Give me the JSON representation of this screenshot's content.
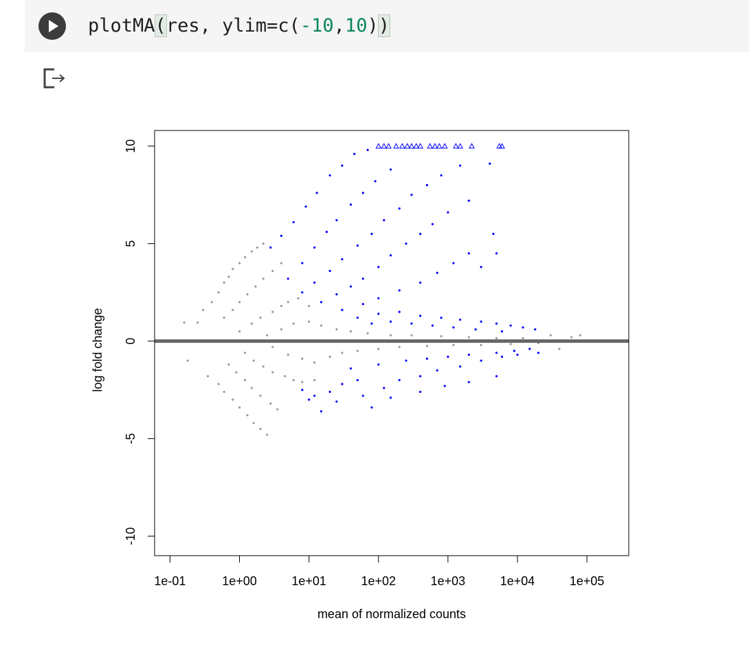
{
  "cell": {
    "code_tokens": [
      {
        "text": "plotMA",
        "kind": "plain"
      },
      {
        "text": "(",
        "kind": "paren"
      },
      {
        "text": "res, ylim=c(",
        "kind": "plain"
      },
      {
        "text": "-10",
        "kind": "num"
      },
      {
        "text": ",",
        "kind": "plain"
      },
      {
        "text": "10",
        "kind": "num"
      },
      {
        "text": ")",
        "kind": "plain"
      },
      {
        "text": ")",
        "kind": "paren"
      }
    ],
    "run_icon": "play-icon",
    "output_icon": "output-redirect-icon"
  },
  "chart_data": {
    "type": "scatter",
    "xlabel": "mean of normalized counts",
    "ylabel": "log fold change",
    "x_scale": "log10",
    "xlim": [
      0.06,
      400000
    ],
    "ylim": [
      -10,
      10
    ],
    "x_ticks": [
      {
        "value": 0.1,
        "label": "1e-01"
      },
      {
        "value": 1,
        "label": "1e+00"
      },
      {
        "value": 10,
        "label": "1e+01"
      },
      {
        "value": 100,
        "label": "1e+02"
      },
      {
        "value": 1000,
        "label": "1e+03"
      },
      {
        "value": 10000,
        "label": "1e+04"
      },
      {
        "value": 100000,
        "label": "1e+05"
      }
    ],
    "y_ticks": [
      {
        "value": 10,
        "label": "10"
      },
      {
        "value": 5,
        "label": "5"
      },
      {
        "value": 0,
        "label": "0"
      },
      {
        "value": -5,
        "label": "-5"
      },
      {
        "value": -10,
        "label": "-10"
      }
    ],
    "reference_line": {
      "y": 0,
      "color": "#666666"
    },
    "colors": {
      "significant": "#0000ff",
      "not_significant": "#999999"
    },
    "series": [
      {
        "significant": false,
        "points": [
          [
            0.16,
            0.95
          ],
          [
            0.18,
            -1.0
          ],
          [
            0.25,
            0.95
          ],
          [
            0.3,
            1.6
          ],
          [
            0.35,
            -1.8
          ],
          [
            0.4,
            2.0
          ],
          [
            0.5,
            2.5
          ],
          [
            0.6,
            3.0
          ],
          [
            0.7,
            3.3
          ],
          [
            0.8,
            3.7
          ],
          [
            1.0,
            4.0
          ],
          [
            1.2,
            4.3
          ],
          [
            1.5,
            4.6
          ],
          [
            1.8,
            4.8
          ],
          [
            2.2,
            5.0
          ],
          [
            0.5,
            -2.2
          ],
          [
            0.6,
            -2.6
          ],
          [
            0.8,
            -3.0
          ],
          [
            1.0,
            -3.4
          ],
          [
            1.3,
            -3.8
          ],
          [
            1.6,
            -4.2
          ],
          [
            2.0,
            -4.5
          ],
          [
            2.5,
            -4.8
          ],
          [
            0.6,
            1.2
          ],
          [
            0.8,
            1.6
          ],
          [
            1.0,
            2.0
          ],
          [
            1.3,
            2.4
          ],
          [
            1.7,
            2.8
          ],
          [
            2.2,
            3.2
          ],
          [
            3.0,
            3.6
          ],
          [
            4.0,
            4.0
          ],
          [
            0.7,
            -1.2
          ],
          [
            0.9,
            -1.6
          ],
          [
            1.2,
            -2.0
          ],
          [
            1.5,
            -2.4
          ],
          [
            2.0,
            -2.8
          ],
          [
            2.8,
            -3.2
          ],
          [
            3.5,
            -3.5
          ],
          [
            1.0,
            0.5
          ],
          [
            1.5,
            0.9
          ],
          [
            2.0,
            1.2
          ],
          [
            3.0,
            1.5
          ],
          [
            4.0,
            1.8
          ],
          [
            5.0,
            2.0
          ],
          [
            7.0,
            2.2
          ],
          [
            10,
            1.8
          ],
          [
            1.2,
            -0.6
          ],
          [
            1.6,
            -1.0
          ],
          [
            2.2,
            -1.3
          ],
          [
            3.0,
            -1.6
          ],
          [
            4.5,
            -1.8
          ],
          [
            6.0,
            -2.0
          ],
          [
            8.0,
            -2.1
          ],
          [
            12,
            -2.0
          ],
          [
            2.5,
            0.3
          ],
          [
            3.0,
            -0.3
          ],
          [
            4.0,
            0.6
          ],
          [
            5.0,
            -0.7
          ],
          [
            6.0,
            0.9
          ],
          [
            8.0,
            -0.9
          ],
          [
            10,
            1.0
          ],
          [
            12,
            -1.1
          ],
          [
            15,
            0.8
          ],
          [
            20,
            -0.8
          ],
          [
            25,
            0.6
          ],
          [
            30,
            -0.6
          ],
          [
            40,
            0.5
          ],
          [
            50,
            -0.5
          ],
          [
            70,
            0.4
          ],
          [
            100,
            -0.4
          ],
          [
            150,
            0.3
          ],
          [
            200,
            -0.3
          ],
          [
            300,
            0.3
          ],
          [
            500,
            -0.25
          ],
          [
            800,
            0.25
          ],
          [
            1200,
            -0.2
          ],
          [
            2000,
            0.2
          ],
          [
            3000,
            -0.2
          ],
          [
            5000,
            0.15
          ],
          [
            8000,
            -0.15
          ],
          [
            12000,
            0.15
          ],
          [
            20000,
            -0.1
          ],
          [
            30000,
            0.3
          ],
          [
            40000,
            -0.4
          ],
          [
            60000,
            0.2
          ],
          [
            80000,
            0.3
          ]
        ]
      },
      {
        "significant": true,
        "points": [
          [
            2.8,
            4.8
          ],
          [
            4,
            5.4
          ],
          [
            6,
            6.1
          ],
          [
            9,
            6.9
          ],
          [
            13,
            7.6
          ],
          [
            20,
            8.5
          ],
          [
            30,
            9.0
          ],
          [
            45,
            9.6
          ],
          [
            70,
            9.8
          ],
          [
            5,
            3.2
          ],
          [
            8,
            4.0
          ],
          [
            12,
            4.8
          ],
          [
            18,
            5.6
          ],
          [
            25,
            6.2
          ],
          [
            40,
            7.0
          ],
          [
            60,
            7.6
          ],
          [
            90,
            8.2
          ],
          [
            150,
            8.8
          ],
          [
            8,
            2.5
          ],
          [
            12,
            3.0
          ],
          [
            20,
            3.6
          ],
          [
            30,
            4.2
          ],
          [
            50,
            4.9
          ],
          [
            80,
            5.5
          ],
          [
            120,
            6.2
          ],
          [
            200,
            6.8
          ],
          [
            300,
            7.5
          ],
          [
            500,
            8.0
          ],
          [
            800,
            8.5
          ],
          [
            1500,
            9.0
          ],
          [
            4000,
            9.1
          ],
          [
            15,
            2.0
          ],
          [
            25,
            2.4
          ],
          [
            40,
            2.8
          ],
          [
            60,
            3.2
          ],
          [
            100,
            3.8
          ],
          [
            150,
            4.4
          ],
          [
            250,
            5.0
          ],
          [
            400,
            5.5
          ],
          [
            600,
            6.0
          ],
          [
            1000,
            6.6
          ],
          [
            2000,
            7.2
          ],
          [
            4500,
            5.5
          ],
          [
            5000,
            4.5
          ],
          [
            30,
            1.6
          ],
          [
            60,
            1.9
          ],
          [
            100,
            2.2
          ],
          [
            200,
            2.6
          ],
          [
            400,
            3.0
          ],
          [
            700,
            3.5
          ],
          [
            1200,
            4.0
          ],
          [
            2000,
            4.5
          ],
          [
            3000,
            3.8
          ],
          [
            50,
            1.2
          ],
          [
            100,
            1.4
          ],
          [
            200,
            1.5
          ],
          [
            400,
            1.3
          ],
          [
            800,
            1.2
          ],
          [
            1500,
            1.1
          ],
          [
            3000,
            1.0
          ],
          [
            5000,
            0.9
          ],
          [
            8000,
            0.8
          ],
          [
            12000,
            0.7
          ],
          [
            18000,
            0.6
          ],
          [
            80,
            0.9
          ],
          [
            150,
            1.0
          ],
          [
            300,
            0.9
          ],
          [
            600,
            0.8
          ],
          [
            1200,
            0.7
          ],
          [
            2500,
            0.6
          ],
          [
            6000,
            0.5
          ],
          [
            8,
            -2.5
          ],
          [
            12,
            -2.8
          ],
          [
            20,
            -2.6
          ],
          [
            30,
            -2.2
          ],
          [
            50,
            -2.0
          ],
          [
            80,
            -3.4
          ],
          [
            120,
            -2.4
          ],
          [
            200,
            -2.0
          ],
          [
            400,
            -1.8
          ],
          [
            700,
            -1.5
          ],
          [
            1500,
            -1.3
          ],
          [
            3000,
            -1.0
          ],
          [
            6000,
            -0.8
          ],
          [
            10000,
            -0.7
          ],
          [
            20000,
            -0.6
          ],
          [
            40,
            -1.4
          ],
          [
            100,
            -1.2
          ],
          [
            250,
            -1.0
          ],
          [
            500,
            -0.9
          ],
          [
            1000,
            -0.8
          ],
          [
            2000,
            -0.7
          ],
          [
            5000,
            -0.6
          ],
          [
            9000,
            -0.5
          ],
          [
            15000,
            -0.4
          ],
          [
            10,
            -3.0
          ],
          [
            15,
            -3.6
          ],
          [
            25,
            -3.1
          ],
          [
            60,
            -2.8
          ],
          [
            150,
            -2.9
          ],
          [
            400,
            -2.6
          ],
          [
            900,
            -2.3
          ],
          [
            2000,
            -2.1
          ],
          [
            5000,
            -1.8
          ]
        ]
      },
      {
        "significant": true,
        "marker": "triangle",
        "points": [
          [
            100,
            10
          ],
          [
            120,
            10
          ],
          [
            140,
            10
          ],
          [
            180,
            10
          ],
          [
            220,
            10
          ],
          [
            260,
            10
          ],
          [
            300,
            10
          ],
          [
            350,
            10
          ],
          [
            400,
            10
          ],
          [
            550,
            10
          ],
          [
            650,
            10
          ],
          [
            750,
            10
          ],
          [
            900,
            10
          ],
          [
            1300,
            10
          ],
          [
            1500,
            10
          ],
          [
            2200,
            10
          ],
          [
            5500,
            10
          ],
          [
            6000,
            10
          ]
        ]
      }
    ]
  }
}
